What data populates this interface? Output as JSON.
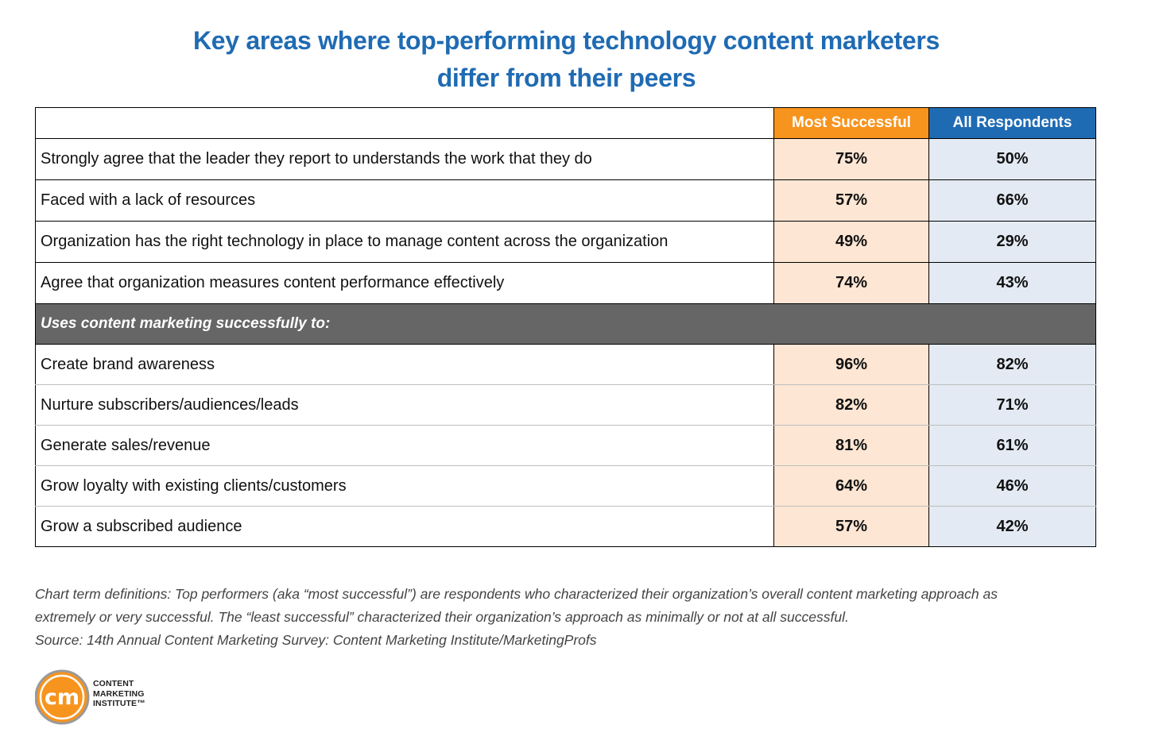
{
  "title_lines": [
    "Key areas where top-performing technology content marketers",
    "differ from their peers"
  ],
  "colors": {
    "title": "#1f6bb3",
    "most_successful_header": "#f7941e",
    "all_respondents_header": "#1f6bb3",
    "most_successful_cell": "#fde6d3",
    "all_respondents_cell": "#e3eaf3",
    "section_bar": "#666666"
  },
  "chart_data": {
    "type": "table",
    "columns": [
      "",
      "Most Successful",
      "All Respondents"
    ],
    "rows_top": [
      {
        "label": "Strongly agree that the leader they report to understands the work that they do",
        "most": "75%",
        "all": "50%"
      },
      {
        "label": "Faced with a lack of resources",
        "most": "57%",
        "all": "66%"
      },
      {
        "label": "Organization has the right technology in place to manage content across the organization",
        "most": "49%",
        "all": "29%"
      },
      {
        "label": "Agree that organization measures content performance effectively",
        "most": "74%",
        "all": "43%"
      }
    ],
    "section_label": "Uses content marketing successfully to:",
    "rows_bottom": [
      {
        "label": "Create brand awareness",
        "most": "96%",
        "all": "82%"
      },
      {
        "label": "Nurture subscribers/audiences/leads",
        "most": "82%",
        "all": "71%"
      },
      {
        "label": "Generate sales/revenue",
        "most": "81%",
        "all": "61%"
      },
      {
        "label": "Grow loyalty with existing clients/customers",
        "most": "64%",
        "all": "46%"
      },
      {
        "label": "Grow a subscribed audience",
        "most": "57%",
        "all": "42%"
      }
    ]
  },
  "notes": [
    "Chart term definitions: Top performers (aka “most successful”) are respondents who characterized their organization’s overall content marketing approach as",
    "extremely or very successful. The “least successful” characterized their organization’s approach as minimally or not at all successful.",
    "Source: 14th Annual Content Marketing Survey: Content Marketing Institute/MarketingProfs"
  ],
  "logo": {
    "monogram": "cm",
    "lines": [
      "CONTENT",
      "MARKETING",
      "INSTITUTE™"
    ]
  }
}
